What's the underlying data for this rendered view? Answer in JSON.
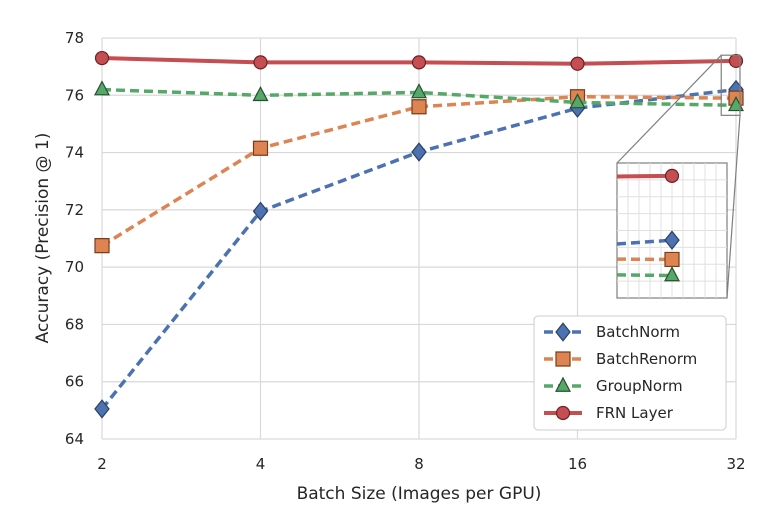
{
  "chart_data": {
    "type": "line",
    "xlabel": "Batch Size (Images per GPU)",
    "ylabel": "Accuracy (Precision @ 1)",
    "x": [
      2,
      4,
      8,
      16,
      32
    ],
    "x_scale": "log2",
    "xtick_labels": [
      "2",
      "4",
      "8",
      "16",
      "32"
    ],
    "ylim": [
      64,
      78
    ],
    "yticks": [
      64,
      66,
      68,
      70,
      72,
      74,
      76,
      78
    ],
    "grid": true,
    "legend_position": "lower-right",
    "inset_zoom": {
      "x_range": [
        30,
        34
      ],
      "y_range": [
        75.3,
        77.4
      ],
      "placement": "right-middle"
    },
    "series": [
      {
        "name": "BatchNorm",
        "values": [
          65.05,
          71.95,
          74.02,
          75.55,
          76.2
        ],
        "color": "#4c72b0",
        "edge": "#2b3f66",
        "marker": "diamond",
        "linestyle": "dashed"
      },
      {
        "name": "BatchRenorm",
        "values": [
          70.75,
          74.15,
          75.6,
          75.95,
          75.9
        ],
        "color": "#dd8452",
        "edge": "#7a3d16",
        "marker": "square",
        "linestyle": "dashed"
      },
      {
        "name": "GroupNorm",
        "values": [
          76.2,
          76.0,
          76.1,
          75.75,
          75.65
        ],
        "color": "#55a868",
        "edge": "#25502f",
        "marker": "triangle",
        "linestyle": "dashed"
      },
      {
        "name": "FRN Layer",
        "values": [
          77.3,
          77.15,
          77.15,
          77.1,
          77.2
        ],
        "color": "#c44e52",
        "edge": "#6e2024",
        "marker": "circle",
        "linestyle": "solid"
      }
    ]
  }
}
